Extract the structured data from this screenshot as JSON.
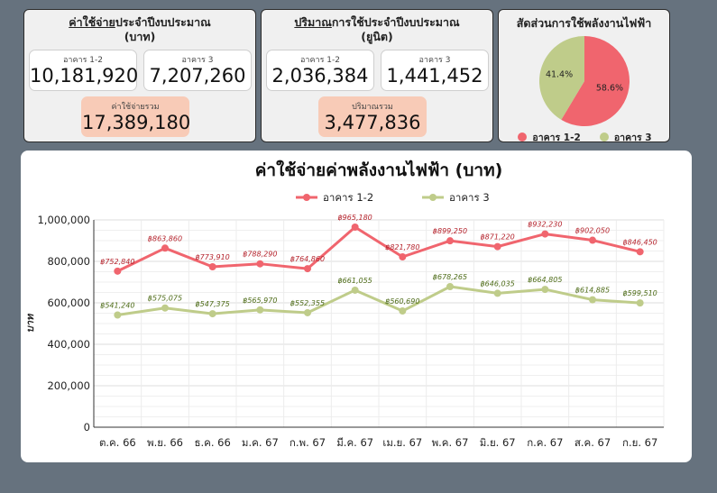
{
  "colors": {
    "b12": "#f0656e",
    "b3": "#bfcc8a",
    "total_bg": "#f8cbb7"
  },
  "cost_card": {
    "title_underlined": "ค่าใช้จ่าย",
    "title_rest": "ประจำปีงบประมาณ",
    "title_line2": "(บาท)",
    "b12_label": "อาคาร 1-2",
    "b12_value": "10,181,920",
    "b3_label": "อาคาร 3",
    "b3_value": "7,207,260",
    "total_label": "ค่าใช้จ่ายรวม",
    "total_value": "17,389,180"
  },
  "usage_card": {
    "title_underlined": "ปริมาณ",
    "title_rest": "การใช้ประจำปีงบประมาณ",
    "title_line2": "(ยูนิต)",
    "b12_label": "อาคาร 1-2",
    "b12_value": "2,036,384",
    "b3_label": "อาคาร 3",
    "b3_value": "1,441,452",
    "total_label": "ปริมาณรวม",
    "total_value": "3,477,836"
  },
  "pie_card": {
    "title": "สัดส่วนการใช้พลังงานไฟฟ้า",
    "legend": [
      "อาคาร 1-2",
      "อาคาร 3"
    ]
  },
  "main_chart": {
    "title": "ค่าใช้จ่ายค่าพลังงานไฟฟ้า (บาท)",
    "ylabel": "บาท"
  },
  "chart_data": [
    {
      "type": "pie",
      "title": "สัดส่วนการใช้พลังงานไฟฟ้า",
      "labels": [
        "อาคาร 1-2",
        "อาคาร 3"
      ],
      "values": [
        58.6,
        41.4
      ],
      "value_labels": [
        "58.6%",
        "41.4%"
      ]
    },
    {
      "type": "line",
      "title": "ค่าใช้จ่ายค่าพลังงานไฟฟ้า (บาท)",
      "xlabel": "",
      "ylabel": "บาท",
      "ylim": [
        0,
        1000000
      ],
      "yticks": [
        0,
        200000,
        400000,
        600000,
        800000,
        1000000
      ],
      "ytick_labels": [
        "0",
        "200,000",
        "400,000",
        "600,000",
        "800,000",
        "1,000,000"
      ],
      "categories": [
        "ต.ค. 66",
        "พ.ย. 66",
        "ธ.ค. 66",
        "ม.ค. 67",
        "ก.พ. 67",
        "มี.ค. 67",
        "เม.ย. 67",
        "พ.ค. 67",
        "มิ.ย. 67",
        "ก.ค. 67",
        "ส.ค. 67",
        "ก.ย. 67"
      ],
      "legend_position": "top",
      "grid": true,
      "series": [
        {
          "name": "อาคาร 1-2",
          "values": [
            752840,
            863860,
            773910,
            788290,
            764860,
            965180,
            821780,
            899250,
            871220,
            932230,
            902050,
            846450
          ],
          "labels": [
            "฿752,840",
            "฿863,860",
            "฿773,910",
            "฿788,290",
            "฿764,860",
            "฿965,180",
            "฿821,780",
            "฿899,250",
            "฿871,220",
            "฿932,230",
            "฿902,050",
            "฿846,450"
          ]
        },
        {
          "name": "อาคาร 3",
          "values": [
            541240,
            575075,
            547375,
            565970,
            552355,
            661055,
            560690,
            678265,
            646035,
            664805,
            614885,
            599510
          ],
          "labels": [
            "฿541,240",
            "฿575,075",
            "฿547,375",
            "฿565,970",
            "฿552,355",
            "฿661,055",
            "฿560,690",
            "฿678,265",
            "฿646,035",
            "฿664,805",
            "฿614,885",
            "฿599,510"
          ]
        }
      ]
    }
  ]
}
